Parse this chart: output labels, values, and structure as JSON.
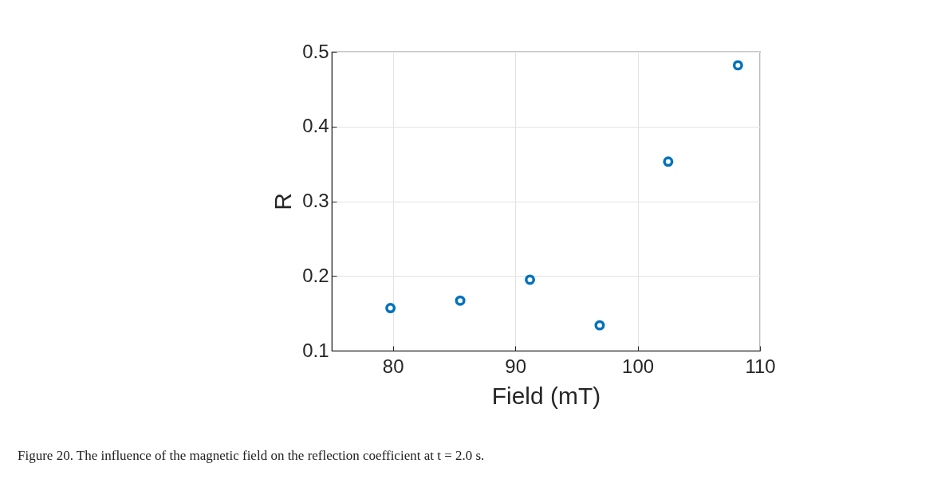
{
  "chart_data": {
    "type": "scatter",
    "xlabel": "Field (mT)",
    "ylabel": "R",
    "x": [
      79.8,
      85.5,
      91.2,
      96.9,
      102.5,
      108.2
    ],
    "series": [
      {
        "color": "#0072bd",
        "values": [
          0.157,
          0.167,
          0.195,
          0.134,
          0.353,
          0.482
        ]
      }
    ],
    "xlim": [
      75,
      110
    ],
    "xticks": [
      80,
      90,
      100,
      110
    ],
    "ylim": [
      0.1,
      0.5
    ],
    "yticks": [
      0.1,
      0.2,
      0.3,
      0.4,
      0.5
    ],
    "grid": true,
    "marker": "circle",
    "annotations": [
      "Figure 20. The influence of the magnetic field on the reflection coefficient at t = 2.0 s."
    ]
  }
}
